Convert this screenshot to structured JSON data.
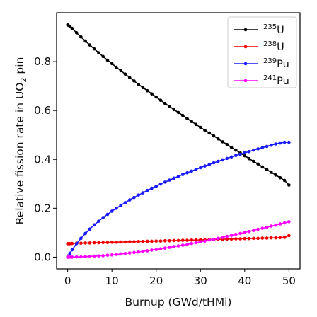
{
  "chart_data": {
    "type": "line",
    "title": "",
    "xlabel": "Burnup (GWd/tHMi)",
    "ylabel": {
      "pre": "Relative fission rate in UO",
      "sub": "2",
      "post": " pin"
    },
    "xlim": [
      -2.5,
      52.5
    ],
    "ylim": [
      -0.048,
      1.0
    ],
    "xticks": [
      0,
      10,
      20,
      30,
      40,
      50
    ],
    "yticks": [
      0.0,
      0.2,
      0.4,
      0.6,
      0.8
    ],
    "grid": false,
    "legend_position": "top-right",
    "x": [
      0,
      0.1,
      0.5,
      1,
      2,
      3,
      4,
      5,
      6,
      7,
      8,
      9,
      10,
      11,
      12,
      13,
      14,
      15,
      16,
      17,
      18,
      19,
      20,
      21,
      22,
      23,
      24,
      25,
      26,
      27,
      28,
      29,
      30,
      31,
      32,
      33,
      34,
      35,
      36,
      37,
      38,
      39,
      40,
      41,
      42,
      43,
      44,
      45,
      46,
      47,
      48,
      49,
      50
    ],
    "series": [
      {
        "name": "U",
        "isotope": "235",
        "color": "#000000",
        "values": [
          0.95,
          0.949,
          0.944,
          0.936,
          0.918,
          0.901,
          0.884,
          0.868,
          0.852,
          0.836,
          0.821,
          0.806,
          0.792,
          0.777,
          0.763,
          0.749,
          0.735,
          0.721,
          0.707,
          0.694,
          0.681,
          0.668,
          0.655,
          0.642,
          0.629,
          0.617,
          0.604,
          0.592,
          0.58,
          0.567,
          0.555,
          0.543,
          0.531,
          0.519,
          0.508,
          0.496,
          0.484,
          0.472,
          0.461,
          0.449,
          0.438,
          0.426,
          0.415,
          0.403,
          0.392,
          0.381,
          0.369,
          0.358,
          0.347,
          0.336,
          0.325,
          0.314,
          0.295
        ]
      },
      {
        "name": "U",
        "isotope": "238",
        "color": "#ee0000",
        "values": [
          0.055,
          0.055,
          0.055,
          0.056,
          0.057,
          0.057,
          0.058,
          0.058,
          0.059,
          0.059,
          0.06,
          0.06,
          0.061,
          0.061,
          0.062,
          0.062,
          0.063,
          0.063,
          0.064,
          0.064,
          0.065,
          0.065,
          0.066,
          0.066,
          0.067,
          0.067,
          0.068,
          0.068,
          0.069,
          0.069,
          0.07,
          0.07,
          0.071,
          0.071,
          0.072,
          0.072,
          0.073,
          0.073,
          0.074,
          0.074,
          0.075,
          0.075,
          0.076,
          0.076,
          0.077,
          0.077,
          0.078,
          0.078,
          0.079,
          0.079,
          0.08,
          0.081,
          0.088
        ]
      },
      {
        "name": "Pu",
        "isotope": "239",
        "color": "#1a1aff",
        "values": [
          0.0,
          0.005,
          0.016,
          0.03,
          0.055,
          0.077,
          0.097,
          0.115,
          0.132,
          0.147,
          0.162,
          0.175,
          0.188,
          0.2,
          0.212,
          0.223,
          0.234,
          0.244,
          0.254,
          0.263,
          0.273,
          0.282,
          0.29,
          0.299,
          0.307,
          0.315,
          0.323,
          0.33,
          0.338,
          0.345,
          0.352,
          0.359,
          0.366,
          0.373,
          0.379,
          0.386,
          0.392,
          0.398,
          0.404,
          0.41,
          0.416,
          0.421,
          0.427,
          0.432,
          0.438,
          0.443,
          0.448,
          0.453,
          0.458,
          0.463,
          0.467,
          0.47,
          0.47
        ]
      },
      {
        "name": "Pu",
        "isotope": "241",
        "color": "#ff00ff",
        "values": [
          0.0,
          0.0,
          0.0,
          0.0,
          0.001,
          0.001,
          0.002,
          0.003,
          0.004,
          0.005,
          0.006,
          0.008,
          0.009,
          0.011,
          0.013,
          0.015,
          0.017,
          0.019,
          0.021,
          0.024,
          0.026,
          0.029,
          0.031,
          0.034,
          0.037,
          0.04,
          0.043,
          0.046,
          0.049,
          0.052,
          0.056,
          0.059,
          0.063,
          0.066,
          0.07,
          0.073,
          0.077,
          0.081,
          0.085,
          0.089,
          0.093,
          0.097,
          0.101,
          0.105,
          0.109,
          0.114,
          0.118,
          0.122,
          0.127,
          0.131,
          0.136,
          0.14,
          0.145
        ]
      }
    ]
  }
}
